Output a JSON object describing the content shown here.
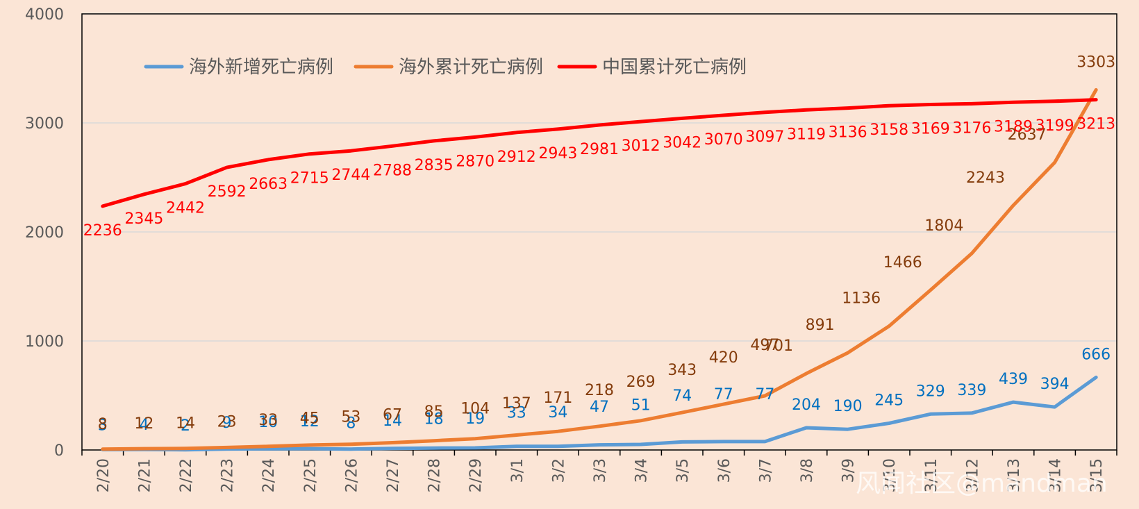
{
  "chart_data": {
    "type": "line",
    "categories": [
      "2/20",
      "2/21",
      "2/22",
      "2/23",
      "2/24",
      "2/25",
      "2/26",
      "2/27",
      "2/28",
      "2/29",
      "3/1",
      "3/2",
      "3/3",
      "3/4",
      "3/5",
      "3/6",
      "3/7",
      "3/8",
      "3/9",
      "3/10",
      "3/11",
      "3/12",
      "3/13",
      "3/14",
      "3/15"
    ],
    "ylim": [
      0,
      4000
    ],
    "yticks": [
      0,
      1000,
      2000,
      3000,
      4000
    ],
    "grid": true,
    "legend_position": "top-left",
    "series": [
      {
        "name": "海外新增死亡病例",
        "color": "#5b9bd5",
        "label_color": "#0070c0",
        "values": [
          3,
          4,
          2,
          9,
          10,
          12,
          8,
          14,
          18,
          19,
          33,
          34,
          47,
          51,
          74,
          77,
          77,
          204,
          190,
          245,
          329,
          339,
          439,
          394,
          666
        ]
      },
      {
        "name": "海外累计死亡病例",
        "color": "#ed7d31",
        "label_color": "#843c0c",
        "values": [
          8,
          12,
          14,
          23,
          33,
          45,
          53,
          67,
          85,
          104,
          137,
          171,
          218,
          269,
          343,
          420,
          497,
          701,
          891,
          1136,
          1466,
          1804,
          2243,
          2637,
          3303
        ]
      },
      {
        "name": "中国累计死亡病例",
        "color": "#ff0000",
        "label_color": "#ff0000",
        "values": [
          2236,
          2345,
          2442,
          2592,
          2663,
          2715,
          2744,
          2788,
          2835,
          2870,
          2912,
          2943,
          2981,
          3012,
          3042,
          3070,
          3097,
          3119,
          3136,
          3158,
          3169,
          3176,
          3189,
          3199,
          3213
        ]
      }
    ]
  },
  "watermark": "风闻社区@mandman"
}
